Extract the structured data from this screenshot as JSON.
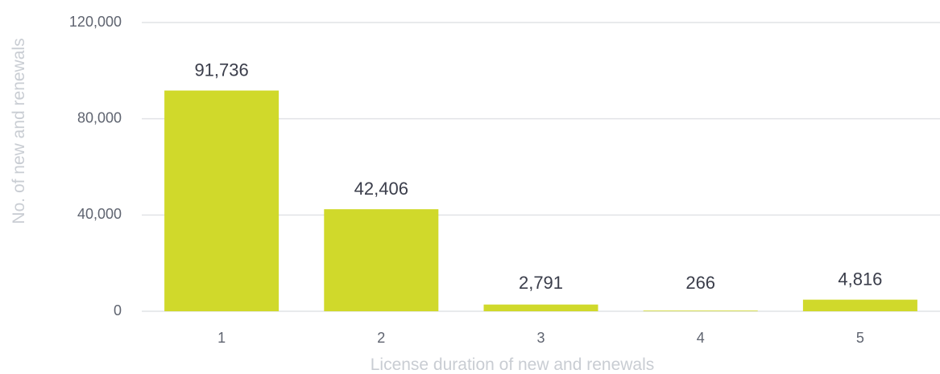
{
  "chart_data": {
    "type": "bar",
    "categories": [
      "1",
      "2",
      "3",
      "4",
      "5"
    ],
    "values": [
      91736,
      42406,
      2791,
      266,
      4816
    ],
    "data_labels": [
      "91,736",
      "42,406",
      "2,791",
      "266",
      "4,816"
    ],
    "y_ticks": [
      0,
      40000,
      80000,
      120000
    ],
    "y_tick_labels": [
      "0",
      "40,000",
      "80,000",
      "120,000"
    ],
    "ylim": [
      0,
      120000
    ],
    "xlabel": "License duration of new and renewals",
    "ylabel": "No. of new and renewals",
    "grid": true,
    "colors": {
      "bar": "#d0d92b",
      "gridline": "#e1e3e6",
      "tick_text": "#5f6470",
      "data_label_text": "#3a3d4a",
      "axis_title_text": "#c9cdd3"
    }
  }
}
